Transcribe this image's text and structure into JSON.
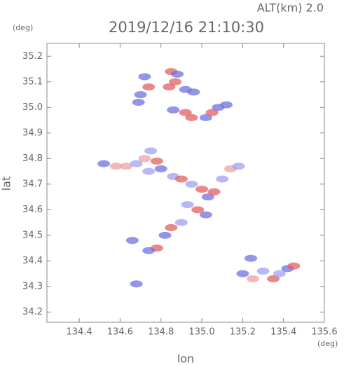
{
  "chart_data": {
    "type": "scatter",
    "title": "2019/12/16 21:10:30",
    "subtitle": "ALT(km) 2.0",
    "x_label": "lon",
    "y_label": "lat",
    "x_unit": "(deg)",
    "y_unit": "(deg)",
    "x": [
      134.72,
      134.74,
      134.7,
      134.69,
      134.85,
      134.88,
      134.87,
      134.84,
      134.92,
      134.96,
      134.86,
      134.92,
      134.95,
      135.02,
      135.05,
      135.08,
      135.12,
      134.52,
      134.58,
      134.63,
      134.68,
      134.72,
      134.75,
      134.78,
      134.74,
      134.8,
      134.86,
      134.9,
      134.95,
      135.0,
      135.03,
      135.06,
      135.1,
      135.14,
      135.18,
      134.93,
      134.98,
      135.02,
      134.9,
      134.85,
      134.82,
      134.78,
      134.74,
      134.66,
      134.68,
      135.2,
      135.25,
      135.3,
      135.35,
      135.38,
      135.42,
      135.45,
      135.24
    ],
    "y": [
      35.12,
      35.08,
      35.05,
      35.02,
      35.14,
      35.13,
      35.1,
      35.08,
      35.07,
      35.06,
      34.99,
      34.98,
      34.96,
      34.96,
      34.98,
      35.0,
      35.01,
      34.78,
      34.77,
      34.77,
      34.78,
      34.8,
      34.83,
      34.79,
      34.75,
      34.76,
      34.73,
      34.72,
      34.7,
      34.68,
      34.65,
      34.67,
      34.72,
      34.76,
      34.77,
      34.62,
      34.6,
      34.58,
      34.55,
      34.53,
      34.5,
      34.45,
      34.44,
      34.48,
      34.31,
      34.35,
      34.33,
      34.36,
      34.33,
      34.35,
      34.37,
      34.38,
      34.41
    ],
    "colors": [
      "#7070e0",
      "#e06060",
      "#7070e0",
      "#7070e0",
      "#e06060",
      "#7070e0",
      "#e06060",
      "#e06060",
      "#7070e0",
      "#7070e0",
      "#7070e0",
      "#e06060",
      "#e06060",
      "#7070e0",
      "#e06060",
      "#7070e0",
      "#7070e0",
      "#7070e0",
      "#f0a0a0",
      "#f0a0a0",
      "#a0a0f0",
      "#f0a0a0",
      "#a0a0f0",
      "#e06060",
      "#a0a0f0",
      "#7070e0",
      "#a0a0f0",
      "#e06060",
      "#a0a0f0",
      "#e06060",
      "#7070e0",
      "#e06060",
      "#a0a0f0",
      "#f0a0a0",
      "#a0a0f0",
      "#a0a0f0",
      "#e06060",
      "#7070e0",
      "#a0a0f0",
      "#e06060",
      "#7070e0",
      "#e06060",
      "#7070e0",
      "#7070e0",
      "#7070e0",
      "#7070e0",
      "#f0a0a0",
      "#a0a0f0",
      "#e06060",
      "#a0a0f0",
      "#7070e0",
      "#e06060",
      "#7070e0"
    ],
    "xlim": [
      134.242,
      135.6
    ],
    "ylim": [
      34.16,
      35.25
    ],
    "xticks": [
      134.4,
      134.6,
      134.8,
      {
        "value": 135,
        "label": "135.0"
      },
      135.2,
      135.4,
      135.6
    ],
    "yticks": [
      34.2,
      34.3,
      34.4,
      34.5,
      34.6,
      34.7,
      34.8,
      34.9,
      {
        "value": 35,
        "label": "35.0"
      },
      35.1,
      35.2
    ]
  }
}
